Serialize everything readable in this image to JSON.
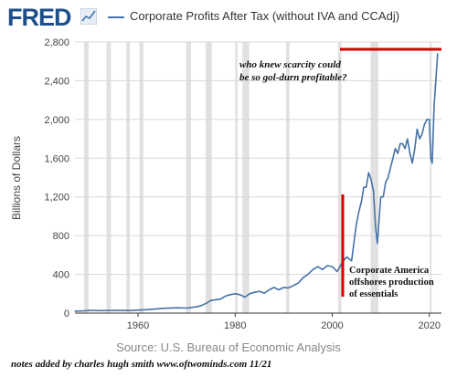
{
  "header": {
    "logo_text": "FRED",
    "legend_label": "Corporate Profits After Tax (without IVA and CCAdj)",
    "series_color": "#4572a7"
  },
  "footer": {
    "source": "Source: U.S. Bureau of Economic Analysis",
    "credit": "notes added by charles hugh smith  www.oftwominds.com   11/21"
  },
  "annotations": {
    "top_note_line1": "who knew scarcity could",
    "top_note_line2": "be so gol-durn profitable?",
    "mid_note_line1": "Corporate America",
    "mid_note_line2": "offshores production",
    "mid_note_line3": "of essentials",
    "note_color": "#d40000"
  },
  "chart_data": {
    "type": "line",
    "title": "Corporate Profits After Tax (without IVA and CCAdj)",
    "ylabel": "Billions of Dollars",
    "xlabel": "",
    "xlim": [
      1947,
      2022.5
    ],
    "ylim": [
      0,
      2800
    ],
    "xticks": [
      1960,
      1980,
      2000,
      2020
    ],
    "yticks": [
      0,
      400,
      800,
      1200,
      1600,
      2000,
      2400,
      2800
    ],
    "ytick_labels": [
      "0",
      "400",
      "800",
      "1,200",
      "1,600",
      "2,000",
      "2,400",
      "2,800"
    ],
    "grid": true,
    "recessions": [
      [
        1948.9,
        1949.8
      ],
      [
        1953.5,
        1954.4
      ],
      [
        1957.6,
        1958.3
      ],
      [
        1960.3,
        1961.1
      ],
      [
        1969.9,
        1970.9
      ],
      [
        1973.9,
        1975.2
      ],
      [
        1980.0,
        1980.5
      ],
      [
        1981.5,
        1982.9
      ],
      [
        1990.5,
        1991.2
      ],
      [
        2001.2,
        2001.9
      ],
      [
        2007.9,
        2009.5
      ],
      [
        2020.1,
        2020.4
      ]
    ],
    "series": [
      {
        "x": [
          1947,
          1949,
          1950,
          1952,
          1955,
          1958,
          1960,
          1962,
          1965,
          1968,
          1970,
          1972,
          1973,
          1974,
          1975,
          1977,
          1978,
          1979,
          1980,
          1981,
          1982,
          1983,
          1984,
          1985,
          1986,
          1987,
          1988,
          1989,
          1990,
          1991,
          1992,
          1993,
          1994,
          1995,
          1996,
          1997,
          1998,
          1999,
          2000,
          2001,
          2001.5,
          2002,
          2003,
          2004,
          2004.7,
          2005,
          2005.5,
          2006,
          2006.5,
          2007,
          2007.5,
          2008,
          2008.5,
          2008.9,
          2009.3,
          2009.7,
          2010,
          2010.5,
          2011,
          2011.5,
          2012,
          2012.5,
          2013,
          2013.5,
          2014,
          2014.5,
          2015,
          2015.5,
          2016,
          2016.5,
          2017,
          2017.5,
          2018,
          2018.5,
          2019,
          2019.5,
          2020,
          2020.3,
          2020.6,
          2021,
          2021.4,
          2021.7
        ],
        "values": [
          20,
          24,
          28,
          25,
          28,
          26,
          31,
          36,
          49,
          55,
          52,
          64,
          77,
          100,
          130,
          145,
          175,
          190,
          200,
          190,
          165,
          200,
          215,
          225,
          205,
          240,
          265,
          240,
          265,
          260,
          285,
          310,
          365,
          400,
          450,
          480,
          450,
          490,
          480,
          430,
          470,
          520,
          580,
          540,
          820,
          930,
          1050,
          1150,
          1300,
          1300,
          1450,
          1380,
          1260,
          900,
          720,
          1000,
          1200,
          1200,
          1350,
          1400,
          1500,
          1600,
          1700,
          1650,
          1750,
          1750,
          1700,
          1800,
          1650,
          1550,
          1700,
          1900,
          1800,
          1850,
          1950,
          2000,
          2000,
          1600,
          1550,
          2150,
          2450,
          2680
        ]
      }
    ],
    "annotations": [
      "who knew scarcity could be so gol-durn profitable?",
      "Corporate America offshores production of essentials"
    ]
  }
}
